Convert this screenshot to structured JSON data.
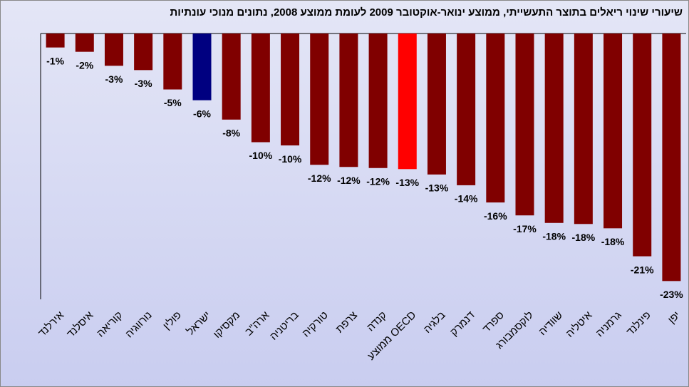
{
  "chart_data": {
    "type": "bar",
    "title": "שיעורי שינוי ריאלים בתוצר התעשייתי, ממוצע ינואר-אוקטובר 2009 לעומת ממוצע 2008, נתונים מנוכי עונתיות",
    "categories": [
      "אירלנד",
      "איסלנד",
      "קוריאה",
      "נורווגיה",
      "פולין",
      "ישראל",
      "מקסיקו",
      "ארה\"ב",
      "בריטניה",
      "טורקיה",
      "צרפת",
      "קנדה",
      "ממוצע OECD",
      "בלגיה",
      "דנמרק",
      "ספרד",
      "לוקסמבורג",
      "שוודיה",
      "איטליה",
      "גרמניה",
      "פינלנד",
      "יפן"
    ],
    "values": [
      -1.3,
      -1.7,
      -3.0,
      -3.4,
      -5.2,
      -6.2,
      -8.0,
      -10.1,
      -10.4,
      -12.2,
      -12.4,
      -12.5,
      -12.6,
      -13.1,
      -14.1,
      -15.7,
      -16.9,
      -17.6,
      -17.7,
      -18.1,
      -20.7,
      -23.0
    ],
    "value_labels": [
      "-1%",
      "-2%",
      "-3%",
      "-3%",
      "-5%",
      "-6%",
      "-8%",
      "-10%",
      "-10%",
      "-12%",
      "-12%",
      "-12%",
      "-13%",
      "-13%",
      "-14%",
      "-16%",
      "-17%",
      "-18%",
      "-18%",
      "-18%",
      "-21%",
      "-23%"
    ],
    "colors": [
      "#800000",
      "#800000",
      "#800000",
      "#800000",
      "#800000",
      "#000080",
      "#800000",
      "#800000",
      "#800000",
      "#800000",
      "#800000",
      "#800000",
      "#ff0000",
      "#800000",
      "#800000",
      "#800000",
      "#800000",
      "#800000",
      "#800000",
      "#800000",
      "#800000",
      "#800000"
    ],
    "ylim": [
      -24.7,
      0
    ]
  }
}
